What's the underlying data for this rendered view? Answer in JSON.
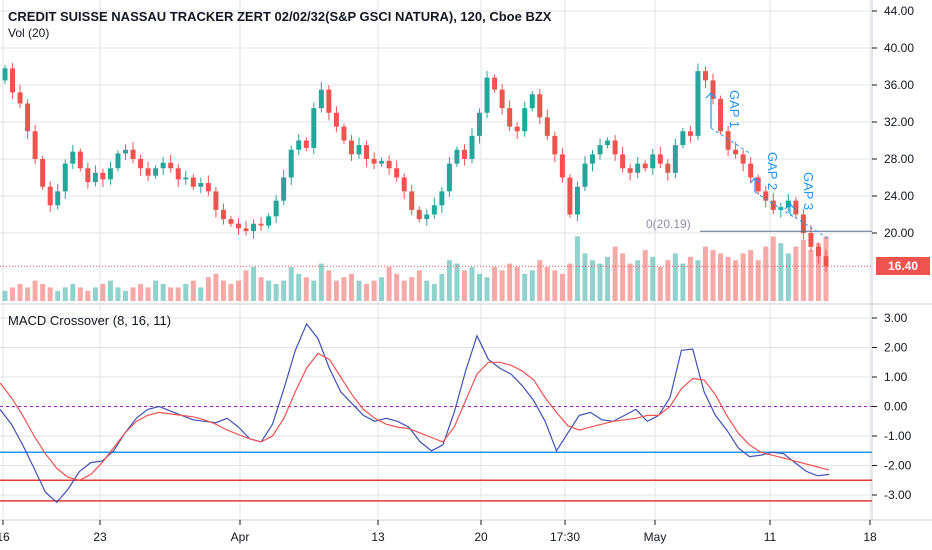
{
  "title": "CREDIT SUISSE NASSAU TRACKER ZERT 02/02/32(S&P GSCI NATURA), 120, Cboe BZX",
  "volume_label": "Vol (20)",
  "macd_label": "MACD Crossover (8, 16, 11)",
  "last_price_label": "16.40",
  "level_label": "0(20.19)",
  "gap_labels": [
    "GAP 1",
    "GAP 2",
    "GAP 3"
  ],
  "colors": {
    "up": "#26a69a",
    "down": "#ef5350",
    "macd_line": "#3f51b5",
    "signal_line": "#ef5350",
    "blue_hline": "#2196f3",
    "red_hline": "#e53935",
    "grid": "#e1e3e6"
  },
  "chart_data": [
    {
      "type": "candlestick",
      "title": "CREDIT SUISSE NASSAU TRACKER ZERT 02/02/32(S&P GSCI NATURA), 120, Cboe BZX",
      "y_ticks": [
        "44.00",
        "40.00",
        "36.00",
        "32.00",
        "28.00",
        "24.00",
        "20.00"
      ],
      "ylim": [
        13,
        45
      ],
      "x_ticks": [
        "16",
        "23",
        "Apr",
        "13",
        "20",
        "17:30",
        "May",
        "11",
        "18"
      ],
      "last_price": 16.4,
      "horizontal_level": 20.19,
      "price_path": [
        36.5,
        37.8,
        35.2,
        34.0,
        31.0,
        28.0,
        25.0,
        23.0,
        24.5,
        27.5,
        28.8,
        27.0,
        25.5,
        26.5,
        25.8,
        27.0,
        28.6,
        29.0,
        28.0,
        27.0,
        26.2,
        27.0,
        27.6,
        27.0,
        25.8,
        26.0,
        25.0,
        25.4,
        24.5,
        22.5,
        21.5,
        21.0,
        20.5,
        20.2,
        21.0,
        20.8,
        21.8,
        23.5,
        26.0,
        29.0,
        30.0,
        29.2,
        33.5,
        35.5,
        33.0,
        31.5,
        30.0,
        28.5,
        29.5,
        28.0,
        27.5,
        27.8,
        27.0,
        26.0,
        24.5,
        22.5,
        21.5,
        22.0,
        23.0,
        24.5,
        27.5,
        29.0,
        28.0,
        30.5,
        33.0,
        36.8,
        35.5,
        33.5,
        31.5,
        31.0,
        33.5,
        35.0,
        32.5,
        30.5,
        28.5,
        26.0,
        22.0,
        25.0,
        27.5,
        28.5,
        29.5,
        30.0,
        28.5,
        27.0,
        26.5,
        27.5,
        27.0,
        28.5,
        27.5,
        26.5,
        29.5,
        31.0,
        30.5,
        37.5,
        36.5,
        34.5,
        31.0,
        29.0,
        28.5,
        27.5,
        26.0,
        24.5,
        23.5,
        22.5,
        22.8,
        23.5,
        22.0,
        20.0,
        18.5,
        17.5,
        16.4
      ],
      "volume_level_series": [
        0.15,
        0.2,
        0.25,
        0.2,
        0.3,
        0.25,
        0.2,
        0.15,
        0.2,
        0.25,
        0.2,
        0.15,
        0.2,
        0.25,
        0.3,
        0.2,
        0.15,
        0.2,
        0.25,
        0.2,
        0.3,
        0.25,
        0.2,
        0.2,
        0.25,
        0.3,
        0.2,
        0.35,
        0.4,
        0.3,
        0.25,
        0.3,
        0.45,
        0.5,
        0.35,
        0.3,
        0.25,
        0.3,
        0.5,
        0.4,
        0.35,
        0.3,
        0.55,
        0.45,
        0.3,
        0.35,
        0.4,
        0.3,
        0.25,
        0.3,
        0.35,
        0.5,
        0.4,
        0.3,
        0.35,
        0.45,
        0.3,
        0.25,
        0.4,
        0.6,
        0.55,
        0.45,
        0.5,
        0.4,
        0.35,
        0.5,
        0.45,
        0.55,
        0.5,
        0.4,
        0.45,
        0.6,
        0.5,
        0.45,
        0.4,
        0.55,
        0.95,
        0.7,
        0.6,
        0.55,
        0.65,
        0.8,
        0.7,
        0.55,
        0.6,
        0.75,
        0.65,
        0.5,
        0.6,
        0.7,
        0.55,
        0.65,
        0.6,
        0.8,
        0.75,
        0.7,
        0.65,
        0.6,
        0.7,
        0.75,
        0.6,
        0.8,
        0.95,
        0.85,
        0.7,
        0.8,
        0.9,
        0.75,
        0.85,
        0.95,
        0.3
      ]
    },
    {
      "type": "line",
      "title": "MACD Crossover (8, 16, 11)",
      "y_ticks": [
        "3.00",
        "2.00",
        "1.00",
        "0.00",
        "-1.00",
        "-2.00",
        "-3.00"
      ],
      "ylim": [
        -3.45,
        3.45
      ],
      "series": [
        {
          "values": [
            -0.1,
            -0.6,
            -1.3,
            -2.1,
            -2.9,
            -3.25,
            -2.8,
            -2.2,
            -1.9,
            -1.85,
            -1.5,
            -0.9,
            -0.4,
            -0.1,
            0.0,
            -0.15,
            -0.3,
            -0.45,
            -0.5,
            -0.55,
            -0.4,
            -0.7,
            -1.1,
            -1.2,
            -0.6,
            0.6,
            1.9,
            2.8,
            2.3,
            1.3,
            0.5,
            0.1,
            -0.3,
            -0.5,
            -0.4,
            -0.5,
            -0.7,
            -1.2,
            -1.5,
            -1.3,
            -0.2,
            1.2,
            2.4,
            1.6,
            1.3,
            1.1,
            0.7,
            0.2,
            -0.5,
            -1.5,
            -0.9,
            -0.3,
            -0.2,
            -0.45,
            -0.5,
            -0.3,
            -0.1,
            -0.5,
            -0.3,
            0.3,
            1.9,
            1.95,
            0.5,
            -0.3,
            -0.8,
            -1.4,
            -1.7,
            -1.65,
            -1.55,
            -1.6,
            -1.9,
            -2.2,
            -2.35,
            -2.3
          ]
        },
        {
          "values": [
            0.8,
            0.3,
            -0.3,
            -1.0,
            -1.6,
            -2.1,
            -2.4,
            -2.5,
            -2.3,
            -1.9,
            -1.4,
            -0.9,
            -0.5,
            -0.3,
            -0.2,
            -0.25,
            -0.3,
            -0.35,
            -0.45,
            -0.6,
            -0.8,
            -0.95,
            -1.1,
            -1.2,
            -1.0,
            -0.4,
            0.5,
            1.3,
            1.8,
            1.6,
            1.0,
            0.4,
            -0.1,
            -0.4,
            -0.6,
            -0.7,
            -0.75,
            -0.9,
            -1.05,
            -1.2,
            -0.7,
            0.2,
            1.1,
            1.5,
            1.5,
            1.4,
            1.2,
            0.9,
            0.3,
            -0.2,
            -0.65,
            -0.8,
            -0.7,
            -0.6,
            -0.5,
            -0.45,
            -0.4,
            -0.3,
            -0.3,
            0.0,
            0.6,
            0.95,
            0.9,
            0.4,
            -0.3,
            -0.9,
            -1.3,
            -1.55,
            -1.65,
            -1.75,
            -1.85,
            -1.95,
            -2.05,
            -2.15
          ]
        }
      ],
      "horizontal_lines": [
        -1.55,
        -2.5,
        -3.2
      ]
    }
  ]
}
